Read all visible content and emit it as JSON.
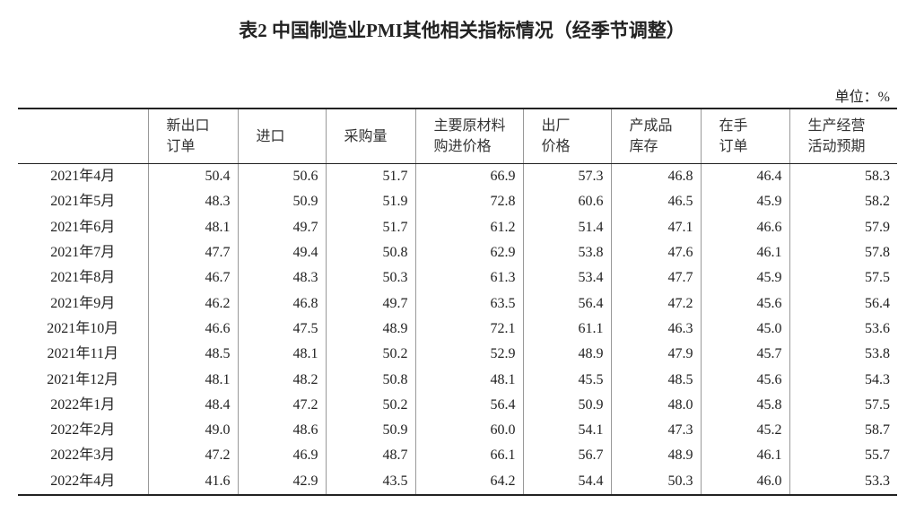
{
  "header": {
    "title": "表2  中国制造业PMI其他相关指标情况（经季节调整）",
    "unit": "单位：%"
  },
  "table": {
    "columns": [
      [
        "新出口",
        "订单"
      ],
      [
        "进口"
      ],
      [
        "采购量"
      ],
      [
        "主要原材料",
        "购进价格"
      ],
      [
        "出厂",
        "价格"
      ],
      [
        "产成品",
        "库存"
      ],
      [
        "在手",
        "订单"
      ],
      [
        "生产经营",
        "活动预期"
      ]
    ],
    "rows": [
      [
        "2021年4月",
        "50.4",
        "50.6",
        "51.7",
        "66.9",
        "57.3",
        "46.8",
        "46.4",
        "58.3"
      ],
      [
        "2021年5月",
        "48.3",
        "50.9",
        "51.9",
        "72.8",
        "60.6",
        "46.5",
        "45.9",
        "58.2"
      ],
      [
        "2021年6月",
        "48.1",
        "49.7",
        "51.7",
        "61.2",
        "51.4",
        "47.1",
        "46.6",
        "57.9"
      ],
      [
        "2021年7月",
        "47.7",
        "49.4",
        "50.8",
        "62.9",
        "53.8",
        "47.6",
        "46.1",
        "57.8"
      ],
      [
        "2021年8月",
        "46.7",
        "48.3",
        "50.3",
        "61.3",
        "53.4",
        "47.7",
        "45.9",
        "57.5"
      ],
      [
        "2021年9月",
        "46.2",
        "46.8",
        "49.7",
        "63.5",
        "56.4",
        "47.2",
        "45.6",
        "56.4"
      ],
      [
        "2021年10月",
        "46.6",
        "47.5",
        "48.9",
        "72.1",
        "61.1",
        "46.3",
        "45.0",
        "53.6"
      ],
      [
        "2021年11月",
        "48.5",
        "48.1",
        "50.2",
        "52.9",
        "48.9",
        "47.9",
        "45.7",
        "53.8"
      ],
      [
        "2021年12月",
        "48.1",
        "48.2",
        "50.8",
        "48.1",
        "45.5",
        "48.5",
        "45.6",
        "54.3"
      ],
      [
        "2022年1月",
        "48.4",
        "47.2",
        "50.2",
        "56.4",
        "50.9",
        "48.0",
        "45.8",
        "57.5"
      ],
      [
        "2022年2月",
        "49.0",
        "48.6",
        "50.9",
        "60.0",
        "54.1",
        "47.3",
        "45.2",
        "58.7"
      ],
      [
        "2022年3月",
        "47.2",
        "46.9",
        "48.7",
        "66.1",
        "56.7",
        "48.9",
        "46.1",
        "55.7"
      ],
      [
        "2022年4月",
        "41.6",
        "42.9",
        "43.5",
        "64.2",
        "54.4",
        "50.3",
        "46.0",
        "53.3"
      ]
    ]
  }
}
